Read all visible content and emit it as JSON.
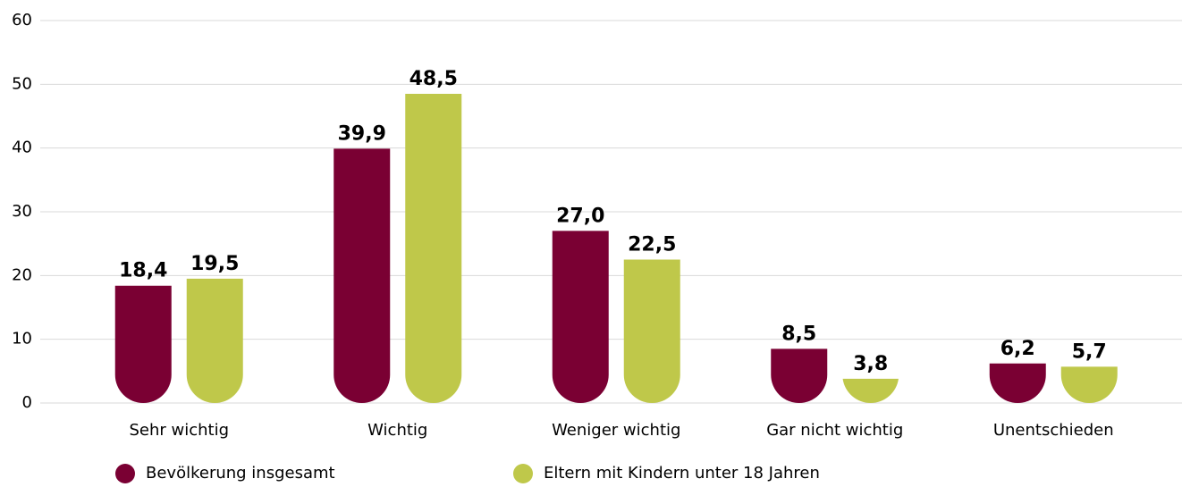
{
  "chart_data": {
    "type": "bar",
    "categories": [
      "Sehr wichtig",
      "Wichtig",
      "Weniger wichtig",
      "Gar nicht wichtig",
      "Unentschieden"
    ],
    "series": [
      {
        "name": "Bevölkerung insgesamt",
        "color": "#7a0033",
        "values": [
          18.4,
          39.9,
          27.0,
          8.5,
          6.2
        ],
        "value_labels": [
          "18,4",
          "39,9",
          "27,0",
          "8,5",
          "6,2"
        ]
      },
      {
        "name": "Eltern mit Kindern unter 18 Jahren",
        "color": "#bfc84a",
        "values": [
          19.5,
          48.5,
          22.5,
          3.8,
          5.7
        ],
        "value_labels": [
          "19,5",
          "48,5",
          "22,5",
          "3,8",
          "5,7"
        ]
      }
    ],
    "ylim": [
      0,
      60
    ],
    "yticks": [
      0,
      10,
      20,
      30,
      40,
      50,
      60
    ],
    "grid": true,
    "legend": "bottom"
  }
}
